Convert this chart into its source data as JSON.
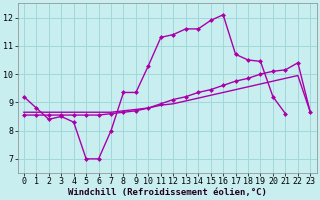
{
  "xlabel": "Windchill (Refroidissement éolien,°C)",
  "bg_color": "#c8eef0",
  "grid_color": "#a0d8dc",
  "line_color": "#aa00aa",
  "xlim": [
    -0.5,
    23.5
  ],
  "ylim": [
    6.5,
    12.5
  ],
  "yticks": [
    7,
    8,
    9,
    10,
    11,
    12
  ],
  "xticks": [
    0,
    1,
    2,
    3,
    4,
    5,
    6,
    7,
    8,
    9,
    10,
    11,
    12,
    13,
    14,
    15,
    16,
    17,
    18,
    19,
    20,
    21,
    22,
    23
  ],
  "line1_x": [
    0,
    1,
    2,
    3,
    4,
    5,
    6,
    7,
    8,
    9,
    10,
    11,
    12,
    13,
    14,
    15,
    16,
    17,
    18,
    19,
    20,
    21
  ],
  "line1_y": [
    9.2,
    8.8,
    8.4,
    8.5,
    8.3,
    7.0,
    7.0,
    8.0,
    9.35,
    9.35,
    10.3,
    11.3,
    11.4,
    11.6,
    11.6,
    11.9,
    12.1,
    10.7,
    10.5,
    10.45,
    9.2,
    8.6
  ],
  "line2_x": [
    0,
    1,
    2,
    3,
    4,
    5,
    6,
    7,
    8,
    9,
    10,
    11,
    12,
    13,
    14,
    15,
    16,
    17,
    18,
    19,
    20,
    21,
    22,
    23
  ],
  "line2_y": [
    8.55,
    8.55,
    8.55,
    8.55,
    8.55,
    8.55,
    8.55,
    8.6,
    8.65,
    8.7,
    8.8,
    8.95,
    9.1,
    9.2,
    9.35,
    9.45,
    9.6,
    9.75,
    9.85,
    10.0,
    10.1,
    10.15,
    10.4,
    8.65
  ],
  "line3_x": [
    0,
    1,
    2,
    3,
    4,
    5,
    6,
    7,
    8,
    9,
    10,
    11,
    12,
    13,
    14,
    15,
    16,
    17,
    18,
    19,
    20,
    21,
    22,
    23
  ],
  "line3_y": [
    8.65,
    8.65,
    8.65,
    8.65,
    8.65,
    8.65,
    8.65,
    8.65,
    8.7,
    8.75,
    8.8,
    8.9,
    8.95,
    9.05,
    9.15,
    9.25,
    9.35,
    9.45,
    9.55,
    9.65,
    9.75,
    9.85,
    9.95,
    8.65
  ],
  "marker_size": 2.5,
  "line_width": 1.0,
  "xlabel_fontsize": 6.5,
  "tick_fontsize": 6,
  "fig_width": 3.2,
  "fig_height": 2.0
}
